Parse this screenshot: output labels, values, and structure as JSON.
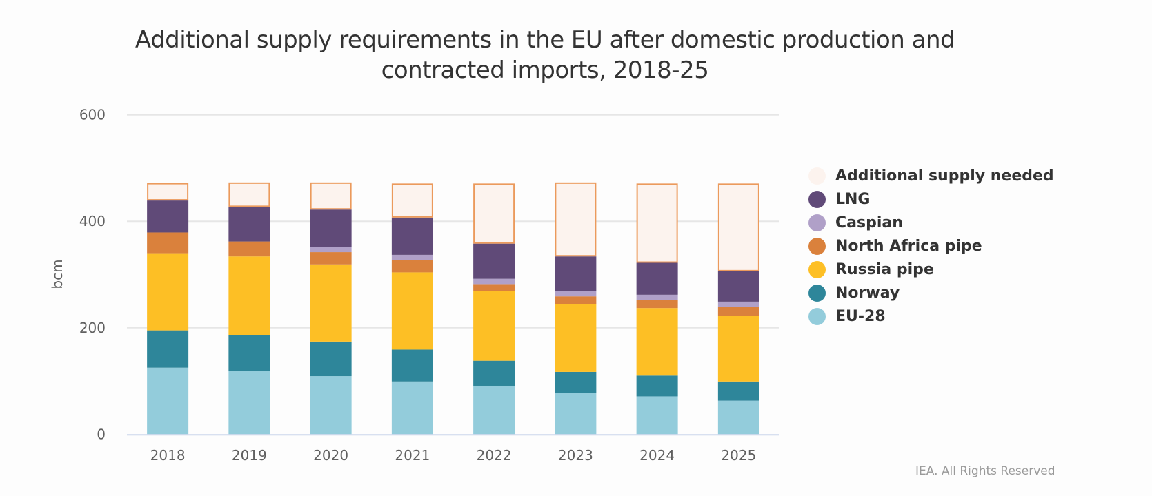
{
  "chart_data": {
    "type": "bar",
    "stacked": true,
    "title": "Additional supply requirements in the EU after domestic production and contracted imports, 2018-25",
    "title_lines": [
      "Additional supply requirements in the EU after domestic production and",
      "contracted imports, 2018-25"
    ],
    "xlabel": "",
    "ylabel": "bcm",
    "ylim": [
      0,
      600
    ],
    "yticks": [
      0,
      200,
      400,
      600
    ],
    "grid": true,
    "legend_position": "right",
    "categories": [
      "2018",
      "2019",
      "2020",
      "2021",
      "2022",
      "2023",
      "2024",
      "2025"
    ],
    "series": [
      {
        "name": "EU-28",
        "color": "#93ccdb",
        "values": [
          125,
          119,
          109,
          99,
          91,
          78,
          71,
          63
        ]
      },
      {
        "name": "Norway",
        "color": "#2e869a",
        "values": [
          70,
          67,
          65,
          60,
          47,
          39,
          39,
          36
        ]
      },
      {
        "name": "Russia pipe",
        "color": "#fdbf25",
        "values": [
          145,
          148,
          145,
          145,
          131,
          127,
          127,
          124
        ]
      },
      {
        "name": "North Africa pipe",
        "color": "#da813c",
        "values": [
          39,
          28,
          23,
          23,
          13,
          15,
          15,
          16
        ]
      },
      {
        "name": "Caspian",
        "color": "#b0a0c8",
        "values": [
          0,
          0,
          10,
          10,
          10,
          10,
          10,
          10
        ]
      },
      {
        "name": "LNG",
        "color": "#604a78",
        "values": [
          60,
          65,
          70,
          70,
          66,
          65,
          60,
          57
        ]
      },
      {
        "name": "Additional supply needed",
        "color": "#fcf3ee",
        "stroke": "#eb9a5c",
        "values": [
          33,
          46,
          51,
          64,
          113,
          139,
          149,
          165
        ]
      }
    ],
    "legend_order": [
      "Additional supply needed",
      "LNG",
      "Caspian",
      "North Africa pipe",
      "Russia pipe",
      "Norway",
      "EU-28"
    ]
  },
  "credit": "IEA. All Rights Reserved"
}
